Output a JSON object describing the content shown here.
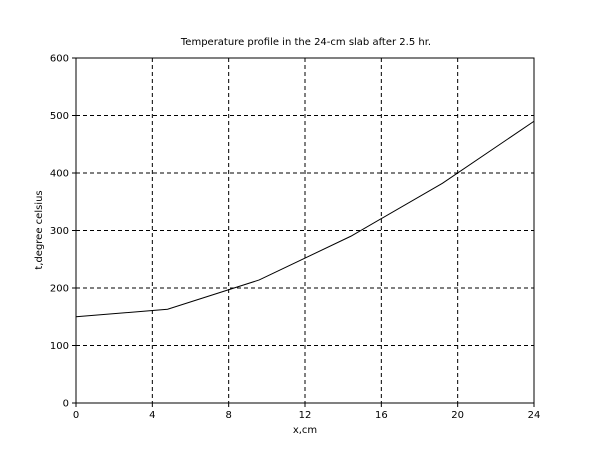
{
  "chart_data": {
    "type": "line",
    "title": "Temperature profile in the 24-cm slab after 2.5 hr.",
    "xlabel": "x,cm",
    "ylabel": "t,degree celsius",
    "xlim": [
      0,
      24
    ],
    "ylim": [
      0,
      600
    ],
    "xticks": [
      0,
      4,
      8,
      12,
      16,
      20,
      24
    ],
    "yticks": [
      0,
      100,
      200,
      300,
      400,
      500,
      600
    ],
    "xtick_labels": [
      "0",
      "4",
      "8",
      "12",
      "16",
      "20",
      "24"
    ],
    "ytick_labels": [
      "0",
      "100",
      "200",
      "300",
      "400",
      "500",
      "600"
    ],
    "grid": true,
    "grid_style": "dashed",
    "series": [
      {
        "color": "#000000",
        "x": [
          0,
          4.8,
          9.6,
          14.4,
          19.2,
          24
        ],
        "y": [
          150,
          163,
          214,
          290,
          382,
          490
        ]
      }
    ]
  }
}
